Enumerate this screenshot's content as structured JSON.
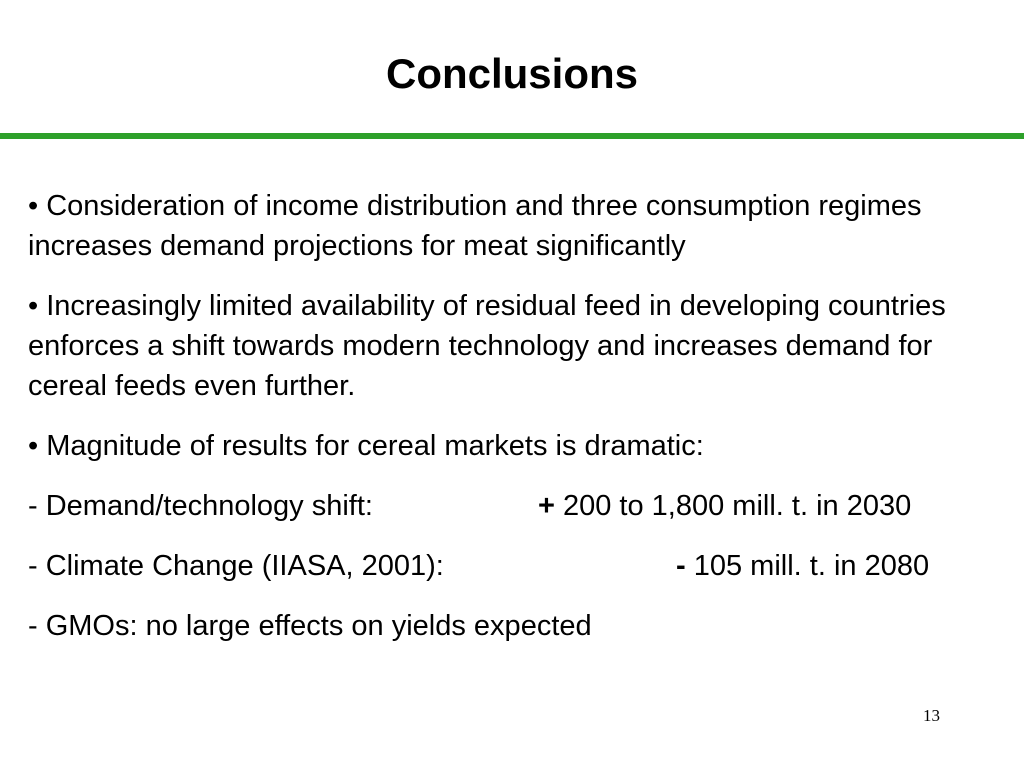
{
  "slide": {
    "title": "Conclusions",
    "accent_color": "#2ea02a",
    "bullets": [
      "• Consideration of income distribution and three consumption regimes increases demand projections for meat significantly",
      "• Increasingly limited availability of residual feed in developing countries enforces a shift towards modern technology and increases demand for cereal feeds even further.",
      "• Magnitude of results for cereal markets is dramatic:"
    ],
    "items": [
      {
        "label": "- Demand/technology shift:",
        "sign": "+",
        "value": " 200 to 1,800 mill. t. in 2030"
      },
      {
        "label": "- Climate Change (IIASA, 2001):",
        "sign": "-",
        "value": " 105 mill. t. in 2080"
      }
    ],
    "last_item": "- GMOs: no large effects on yields expected",
    "page_number": "13"
  }
}
